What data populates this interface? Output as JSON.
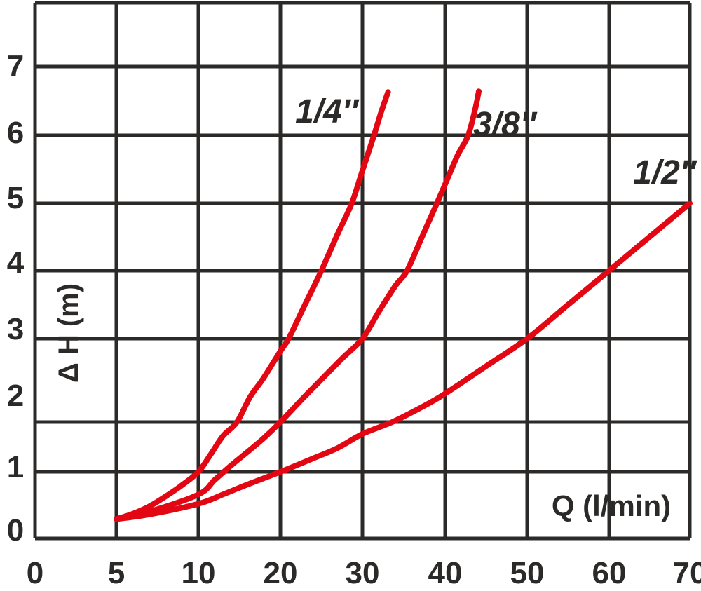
{
  "chart_data": {
    "type": "line",
    "title": "",
    "xlabel": "Q (l/min)",
    "ylabel": "Δ H (m)",
    "x_tick_labels": [
      "0",
      "5",
      "10",
      "20",
      "30",
      "40",
      "50",
      "60",
      "70"
    ],
    "x_tick_values": [
      0,
      5,
      10,
      20,
      30,
      40,
      50,
      60,
      70
    ],
    "y_tick_labels": [
      "0",
      "1",
      "2",
      "3",
      "4",
      "5",
      "6",
      "7"
    ],
    "y_tick_values": [
      0,
      1,
      2,
      3,
      4,
      5,
      6,
      7
    ],
    "x_scale_note": "tick marks evenly spaced although values step 0,5,10 then by 10",
    "grid": true,
    "legend_position": "labels beside each curve",
    "series": [
      {
        "name": "1/4″",
        "points": [
          [
            5,
            0.29
          ],
          [
            6,
            0.37
          ],
          [
            7,
            0.48
          ],
          [
            8,
            0.63
          ],
          [
            9,
            0.8
          ],
          [
            10,
            1.0
          ],
          [
            11.5,
            1.35
          ],
          [
            13,
            1.72
          ],
          [
            14.7,
            2.0
          ],
          [
            16.3,
            2.3
          ],
          [
            17.9,
            2.52
          ],
          [
            20,
            2.85
          ],
          [
            21,
            3.0
          ],
          [
            23,
            3.5
          ],
          [
            25,
            4.0
          ],
          [
            27,
            4.55
          ],
          [
            28.7,
            5.0
          ],
          [
            30,
            5.48
          ],
          [
            31.4,
            6.0
          ],
          [
            32.3,
            6.35
          ],
          [
            33.1,
            6.63
          ]
        ]
      },
      {
        "name": "3/8″",
        "points": [
          [
            5,
            0.29
          ],
          [
            7,
            0.4
          ],
          [
            10,
            0.66
          ],
          [
            12,
            0.88
          ],
          [
            14,
            1.13
          ],
          [
            16,
            1.4
          ],
          [
            18,
            1.68
          ],
          [
            20,
            2.0
          ],
          [
            22.5,
            2.26
          ],
          [
            25,
            2.51
          ],
          [
            27.5,
            2.76
          ],
          [
            30,
            3.0
          ],
          [
            32,
            3.4
          ],
          [
            34,
            3.78
          ],
          [
            35.4,
            4.0
          ],
          [
            37.2,
            4.5
          ],
          [
            39,
            5.0
          ],
          [
            40,
            5.28
          ],
          [
            41.5,
            5.7
          ],
          [
            42.8,
            6.0
          ],
          [
            43.7,
            6.4
          ],
          [
            44.1,
            6.64
          ]
        ]
      },
      {
        "name": "1/2″",
        "points": [
          [
            5,
            0.29
          ],
          [
            7,
            0.36
          ],
          [
            10,
            0.52
          ],
          [
            13,
            0.66
          ],
          [
            16,
            0.81
          ],
          [
            20,
            1.0
          ],
          [
            24,
            1.27
          ],
          [
            27,
            1.48
          ],
          [
            30,
            1.76
          ],
          [
            33.6,
            2.0
          ],
          [
            37,
            2.17
          ],
          [
            40,
            2.34
          ],
          [
            45,
            2.67
          ],
          [
            50,
            3.0
          ],
          [
            55,
            3.5
          ],
          [
            60,
            4.0
          ],
          [
            65,
            4.5
          ],
          [
            70,
            5.0
          ]
        ]
      }
    ]
  },
  "colors": {
    "curve_red": "#e30613",
    "grid": "#2b2a29",
    "text": "#2b2a29",
    "background": "#ffffff"
  }
}
